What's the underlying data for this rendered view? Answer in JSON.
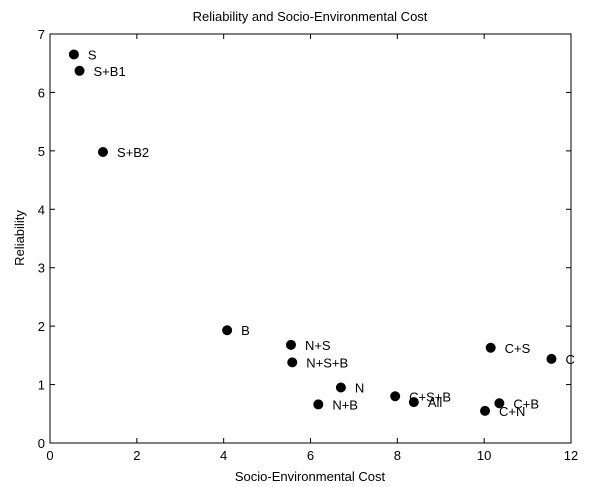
{
  "chart_data": {
    "type": "scatter",
    "title": "Reliability and Socio-Environmental Cost",
    "xlabel": "Socio-Environmental Cost",
    "ylabel": "Reliability",
    "xlim": [
      0,
      12
    ],
    "ylim": [
      0,
      7
    ],
    "xticks": [
      "0",
      "2",
      "4",
      "6",
      "8",
      "10",
      "12"
    ],
    "yticks": [
      "0",
      "1",
      "2",
      "3",
      "4",
      "5",
      "6",
      "7"
    ],
    "grid": false,
    "legend": "none",
    "marker_color": "#000000",
    "points": [
      {
        "label": "S",
        "x": 0.55,
        "y": 6.65
      },
      {
        "label": "S+B1",
        "x": 0.68,
        "y": 6.37
      },
      {
        "label": "S+B2",
        "x": 1.22,
        "y": 4.98
      },
      {
        "label": "B",
        "x": 4.08,
        "y": 1.93
      },
      {
        "label": "N+S",
        "x": 5.55,
        "y": 1.68
      },
      {
        "label": "N+S+B",
        "x": 5.58,
        "y": 1.38
      },
      {
        "label": "N",
        "x": 6.7,
        "y": 0.95
      },
      {
        "label": "N+B",
        "x": 6.18,
        "y": 0.66
      },
      {
        "label": "C+S+B",
        "x": 7.95,
        "y": 0.8
      },
      {
        "label": "All",
        "x": 8.38,
        "y": 0.7
      },
      {
        "label": "C+S",
        "x": 10.15,
        "y": 1.63
      },
      {
        "label": "C",
        "x": 11.55,
        "y": 1.44
      },
      {
        "label": "C+B",
        "x": 10.35,
        "y": 0.68
      },
      {
        "label": "C+N",
        "x": 10.02,
        "y": 0.55
      }
    ]
  }
}
